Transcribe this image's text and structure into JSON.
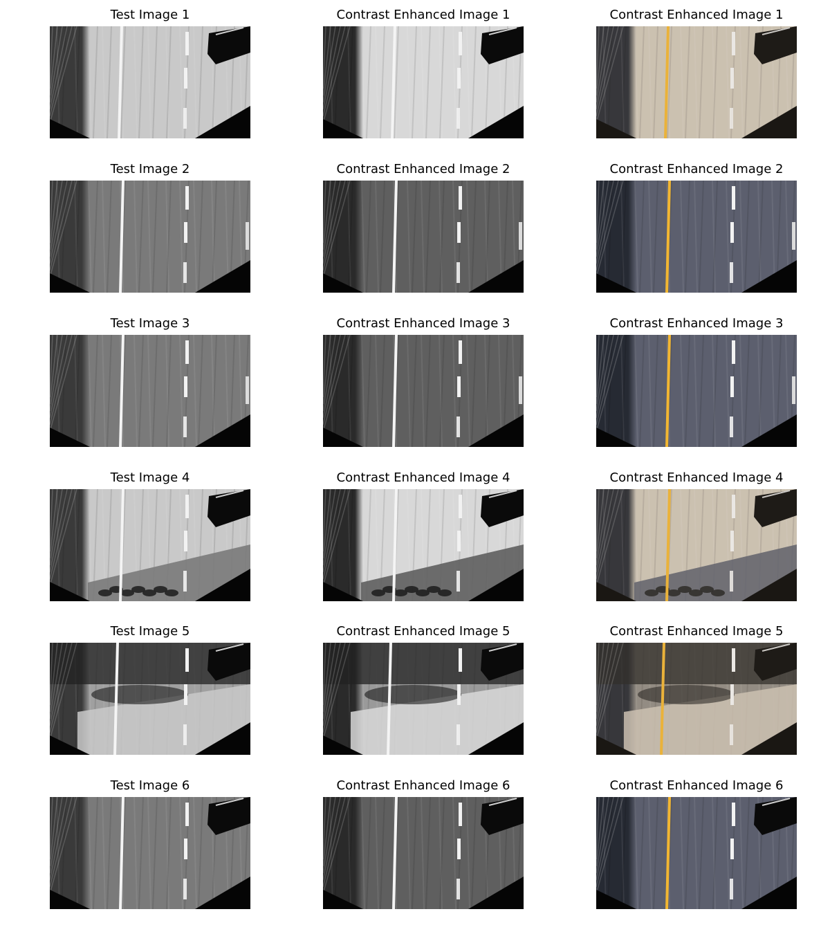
{
  "rows": [
    {
      "row": 1,
      "variant": "bright",
      "cells": [
        "Test Image 1",
        "Contrast Enhanced Image 1",
        "Contrast Enhanced Image 1"
      ]
    },
    {
      "row": 2,
      "variant": "dark",
      "cells": [
        "Test Image 2",
        "Contrast Enhanced Image 2",
        "Contrast Enhanced Image 2"
      ]
    },
    {
      "row": 3,
      "variant": "dark",
      "cells": [
        "Test Image 3",
        "Contrast Enhanced Image 3",
        "Contrast Enhanced Image 3"
      ]
    },
    {
      "row": 4,
      "variant": "shadow",
      "cells": [
        "Test Image 4",
        "Contrast Enhanced Image 4",
        "Contrast Enhanced Image 4"
      ]
    },
    {
      "row": 5,
      "variant": "mixed",
      "cells": [
        "Test Image 5",
        "Contrast Enhanced Image 5",
        "Contrast Enhanced Image 5"
      ]
    },
    {
      "row": 6,
      "variant": "dark",
      "cells": [
        "Test Image 6",
        "Contrast Enhanced Image 6",
        "Contrast Enhanced Image 6"
      ]
    }
  ],
  "colors": {
    "lane_yellow": "#f2b632",
    "lane_white": "#f4f4f4",
    "black_mask": "#050505"
  }
}
